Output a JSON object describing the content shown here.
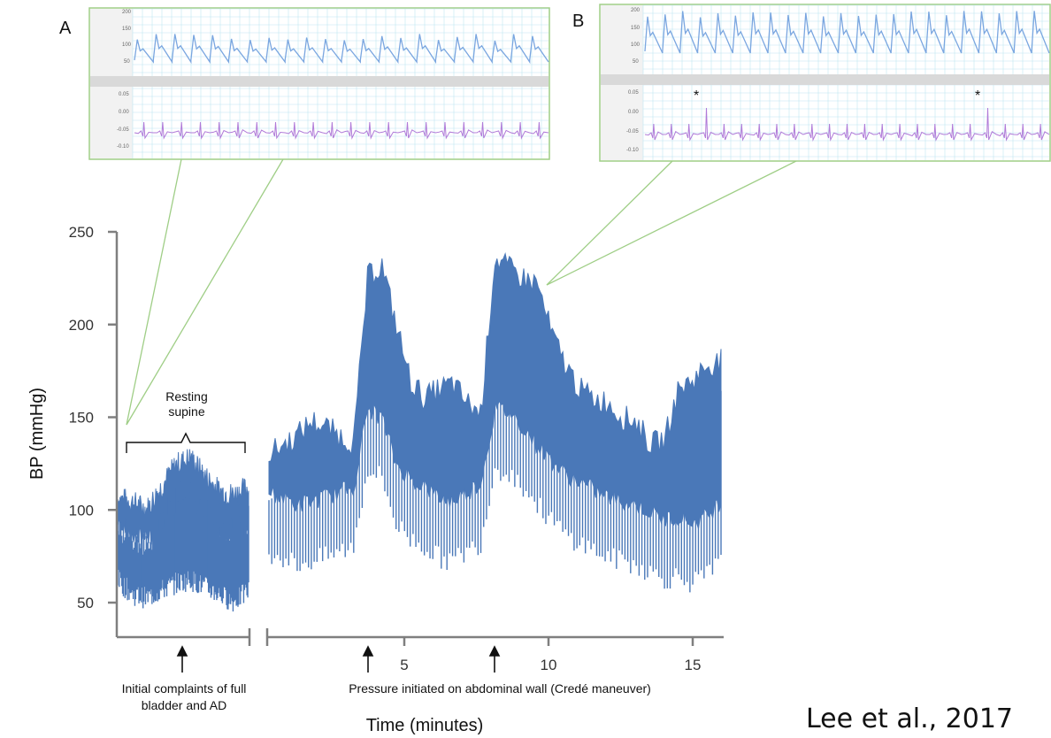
{
  "colors": {
    "trace": "#4a78b8",
    "axis": "#7f7f7f",
    "inset_border": "#9fce86",
    "inset_bp": "#7aa6e0",
    "inset_ecg": "#b07ad8",
    "inset_grid": "#bfe6f2"
  },
  "chart_data": {
    "type": "area",
    "title": "",
    "xlabel": "Time (minutes)",
    "ylabel": "BP (mmHg)",
    "ylim": [
      40,
      250
    ],
    "yticks": [
      "50",
      "100",
      "150",
      "200",
      "250"
    ],
    "ytick_values": [
      50,
      100,
      150,
      200,
      250
    ],
    "xticks": [
      "5",
      "10",
      "15"
    ],
    "xtick_values": [
      5,
      10,
      15
    ],
    "xlim": [
      -5,
      16
    ],
    "segments": [
      {
        "name": "",
        "x": [
          -5,
          -4.5,
          -4,
          -3.5,
          -3,
          -2.5,
          -2,
          -1.5,
          -1,
          -0.5
        ],
        "upper": [
          106,
          104,
          100,
          112,
          124,
          128,
          118,
          110,
          108,
          112
        ],
        "lower": [
          60,
          52,
          50,
          54,
          58,
          60,
          56,
          52,
          48,
          54
        ]
      },
      {
        "name": "",
        "x": [
          0,
          0.5,
          1,
          1.5,
          2,
          2.5,
          3,
          3.5,
          4,
          4.5,
          5,
          5.5,
          6,
          6.5,
          7,
          7.5,
          8,
          8.5,
          9,
          9.5,
          10,
          10.5,
          11,
          11.5,
          12,
          12.5,
          13,
          13.5,
          14,
          14.5,
          15,
          15.5,
          16
        ],
        "upper": [
          130,
          135,
          140,
          148,
          145,
          140,
          136,
          226,
          232,
          200,
          170,
          160,
          165,
          168,
          158,
          152,
          236,
          230,
          225,
          222,
          195,
          178,
          165,
          160,
          158,
          150,
          148,
          135,
          138,
          165,
          170,
          178,
          180
        ],
        "lower": [
          75,
          72,
          68,
          70,
          72,
          75,
          78,
          120,
          115,
          90,
          82,
          78,
          72,
          70,
          75,
          80,
          120,
          118,
          110,
          100,
          92,
          84,
          80,
          76,
          72,
          70,
          68,
          64,
          60,
          62,
          58,
          62,
          70
        ]
      }
    ],
    "annotations": [
      {
        "text": "Resting supine",
        "lines": [
          "Resting",
          "supine"
        ],
        "x_range": [
          -5,
          -0.3
        ]
      },
      {
        "text": "Initial complaints of full bladder and AD",
        "lines": [
          "Initial complaints of full",
          "bladder and AD"
        ],
        "x": -2.2
      },
      {
        "text": "Pressure initiated on abdominal wall (Credé maneuver)",
        "arrows_x": [
          3.5,
          8
        ]
      }
    ],
    "insets": [
      {
        "label": "A",
        "bp_ticks": [
          "200",
          "150",
          "100",
          "50"
        ],
        "ecg_ticks": [
          "0.05",
          "0.00",
          "-0.05",
          "-0.10"
        ]
      },
      {
        "label": "B",
        "bp_ticks": [
          "200",
          "150",
          "100",
          "50"
        ],
        "ecg_ticks": [
          "0.05",
          "0.00",
          "-0.05",
          "-0.10"
        ],
        "markers": [
          "*",
          "*"
        ]
      }
    ]
  },
  "citation": "Lee et al., 2017"
}
